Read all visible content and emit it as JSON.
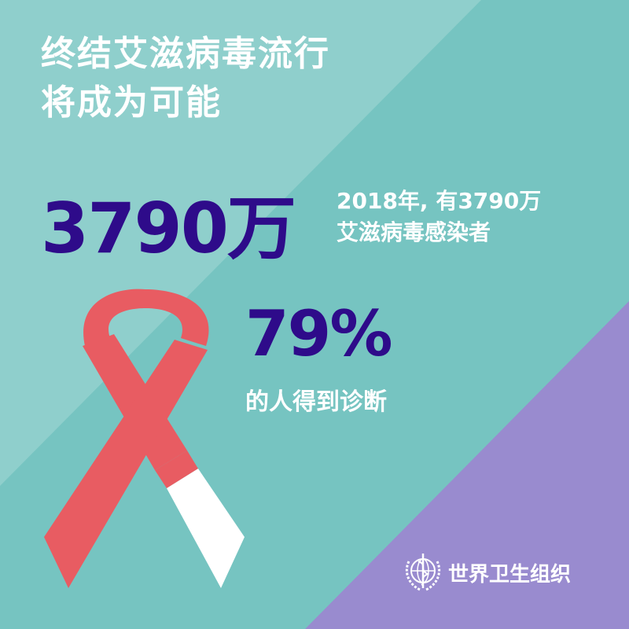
{
  "headline": {
    "line1": "终结艾滋病毒流行",
    "line2": "将成为可能"
  },
  "stat1": {
    "value": "3790万",
    "desc_line1": "2018年, 有3790万",
    "desc_line2": "艾滋病毒感染者"
  },
  "stat2": {
    "value": "79%",
    "desc": "的人得到诊断"
  },
  "logo": {
    "text": "世界卫生组织",
    "icon": "who-emblem-icon"
  },
  "colors": {
    "background": "#76c4c1",
    "stripe": "#8fcfcc",
    "purple": "#998bcf",
    "ribbon": "#e85c62",
    "number": "#2e0b8a"
  }
}
